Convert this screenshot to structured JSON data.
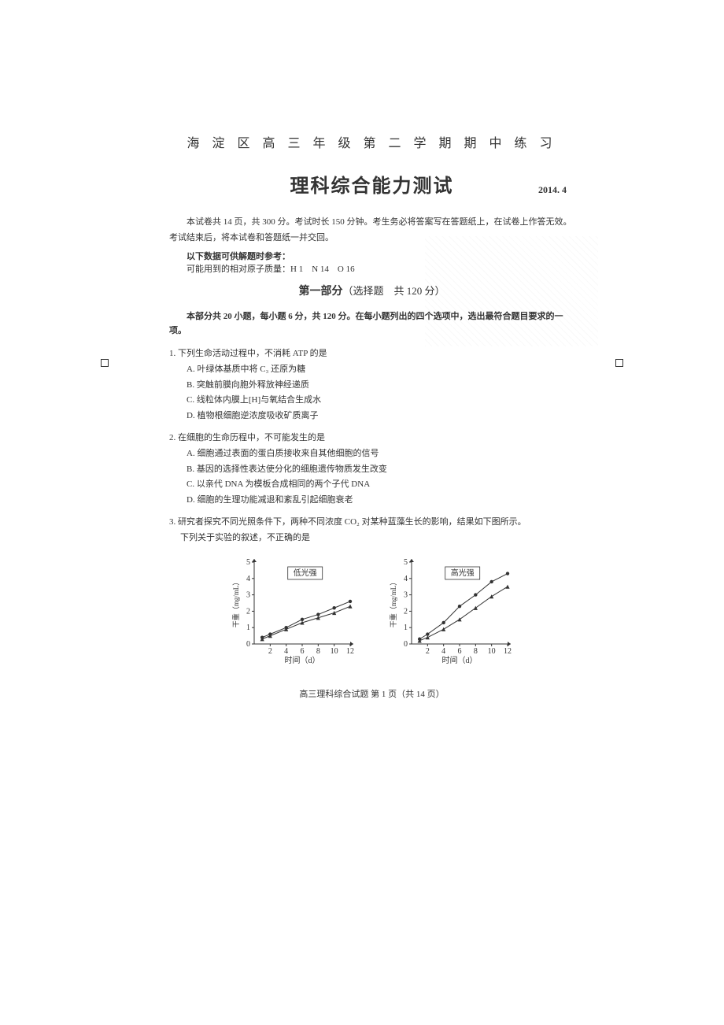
{
  "header": {
    "pretitle": "海 淀 区 高 三 年 级 第 二 学 期 期 中 练 习",
    "title": "理科综合能力测试",
    "date": "2014. 4"
  },
  "intro": {
    "line1": "本试卷共 14 页，共 300 分。考试时长 150 分钟。考生务必将答案写在答题纸上，在试卷上作答无效。考试结束后，将本试卷和答题纸一并交回。",
    "ref_label": "以下数据可供解题时参考：",
    "ref_data": "可能用到的相对原子质量：H 1　N 14　O 16"
  },
  "section1": {
    "title_bold": "第一部分",
    "title_rest": "（选择题　共 120 分）",
    "intro": "本部分共 20 小题，每小题 6 分，共 120 分。在每小题列出的四个选项中，选出最符合题目要求的一项。"
  },
  "q1": {
    "stem": "1. 下列生命活动过程中，不消耗 ATP 的是",
    "a": "A. 叶绿体基质中将 C₃ 还原为糖",
    "b": "B. 突触前膜向胞外释放神经递质",
    "c": "C. 线粒体内膜上[H]与氧结合生成水",
    "d": "D. 植物根细胞逆浓度吸收矿质离子"
  },
  "q2": {
    "stem": "2. 在细胞的生命历程中，不可能发生的是",
    "a": "A. 细胞通过表面的蛋白质接收来自其他细胞的信号",
    "b": "B. 基因的选择性表达使分化的细胞遗传物质发生改变",
    "c": "C. 以亲代 DNA 为模板合成相同的两个子代 DNA",
    "d": "D. 细胞的生理功能减退和紊乱引起细胞衰老"
  },
  "q3": {
    "stem": "3. 研究者探究不同光照条件下，两种不同浓度 CO₂ 对某种蓝藻生长的影响，结果如下图所示。",
    "sub": "下列关于实验的叙述，不正确的是"
  },
  "charts": {
    "left": {
      "label": "低光强",
      "xlabel": "时间（d）",
      "ylabel": "干重（mg/mL）",
      "xlim": [
        0,
        12
      ],
      "ylim": [
        0,
        5
      ],
      "xticks": [
        2,
        4,
        6,
        8,
        10,
        12
      ],
      "yticks": [
        0,
        1,
        2,
        3,
        4,
        5
      ],
      "series1": {
        "marker": "circle",
        "points": [
          [
            1,
            0.4
          ],
          [
            2,
            0.6
          ],
          [
            4,
            1.0
          ],
          [
            6,
            1.5
          ],
          [
            8,
            1.8
          ],
          [
            10,
            2.2
          ],
          [
            12,
            2.6
          ]
        ]
      },
      "series2": {
        "marker": "triangle",
        "points": [
          [
            1,
            0.3
          ],
          [
            2,
            0.5
          ],
          [
            4,
            0.9
          ],
          [
            6,
            1.3
          ],
          [
            8,
            1.6
          ],
          [
            10,
            1.9
          ],
          [
            12,
            2.3
          ]
        ]
      },
      "line_color": "#333333",
      "axis_color": "#333333",
      "fontsize": 10
    },
    "right": {
      "label": "高光强",
      "xlabel": "时间（d）",
      "ylabel": "干重（mg/mL）",
      "xlim": [
        0,
        12
      ],
      "ylim": [
        0,
        5
      ],
      "xticks": [
        2,
        4,
        6,
        8,
        10,
        12
      ],
      "yticks": [
        0,
        1,
        2,
        3,
        4,
        5
      ],
      "series1": {
        "marker": "circle",
        "points": [
          [
            1,
            0.3
          ],
          [
            2,
            0.6
          ],
          [
            4,
            1.3
          ],
          [
            6,
            2.3
          ],
          [
            8,
            3.0
          ],
          [
            10,
            3.8
          ],
          [
            12,
            4.3
          ]
        ]
      },
      "series2": {
        "marker": "triangle",
        "points": [
          [
            1,
            0.2
          ],
          [
            2,
            0.4
          ],
          [
            4,
            0.9
          ],
          [
            6,
            1.5
          ],
          [
            8,
            2.2
          ],
          [
            10,
            2.9
          ],
          [
            12,
            3.5
          ]
        ]
      },
      "line_color": "#333333",
      "axis_color": "#333333",
      "fontsize": 10
    }
  },
  "footer": "高三理科综合试题 第 1 页（共 14 页）"
}
